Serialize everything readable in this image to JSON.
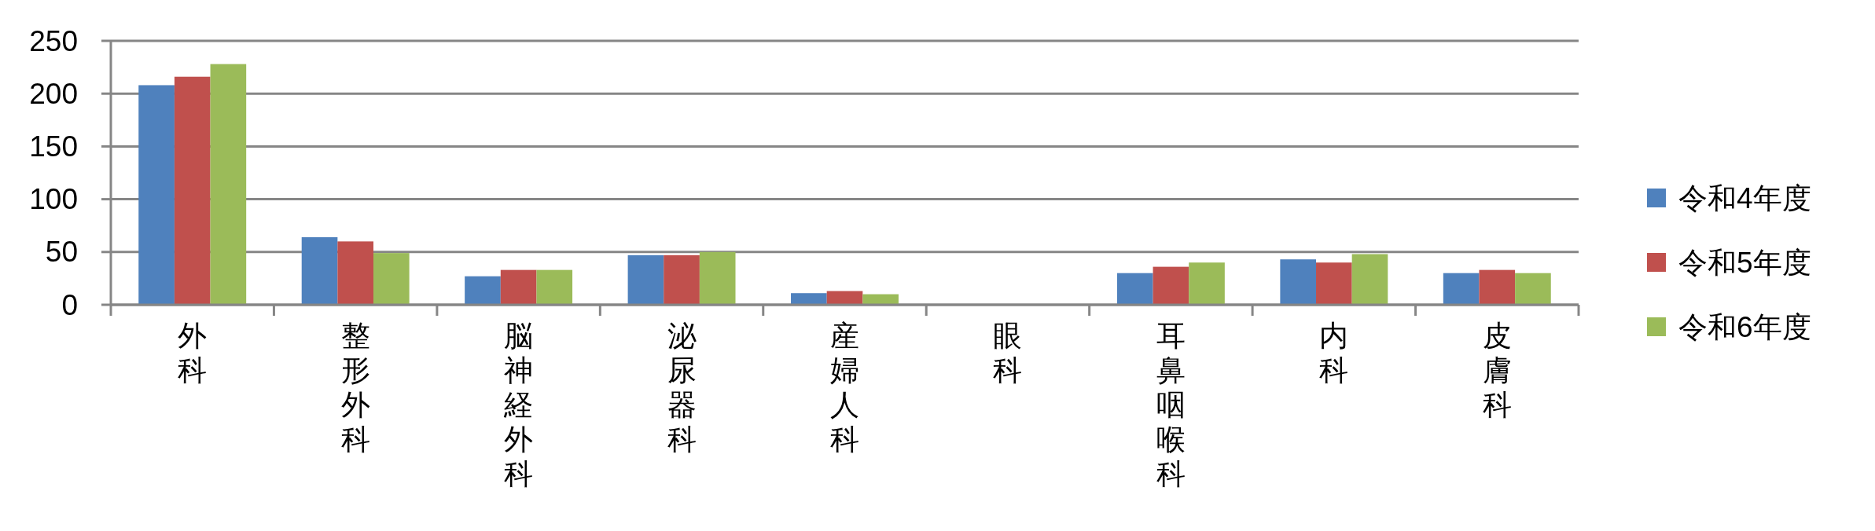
{
  "chart_data": {
    "type": "bar",
    "categories": [
      "外科",
      "整形外科",
      "脳神経外科",
      "泌尿器科",
      "産婦人科",
      "眼科",
      "耳鼻咽喉科",
      "内科",
      "皮膚科"
    ],
    "series": [
      {
        "name": "令和4年度",
        "color": "#4f81bd",
        "values": [
          208,
          64,
          27,
          47,
          11,
          0,
          30,
          43,
          30
        ]
      },
      {
        "name": "令和5年度",
        "color": "#c0504d",
        "values": [
          216,
          60,
          33,
          47,
          13,
          0,
          36,
          40,
          33
        ]
      },
      {
        "name": "令和6年度",
        "color": "#9bbb59",
        "values": [
          228,
          49,
          33,
          50,
          10,
          0,
          40,
          48,
          30
        ]
      }
    ],
    "ylim": [
      0,
      250
    ],
    "yticks": [
      0,
      50,
      100,
      150,
      200,
      250
    ],
    "grid": "y",
    "legend": "right"
  }
}
